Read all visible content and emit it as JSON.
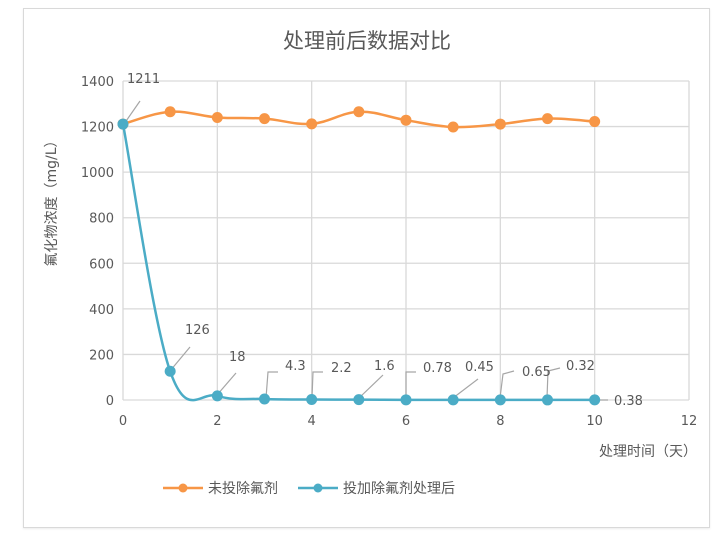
{
  "chart_data": {
    "type": "line",
    "title": "处理前后数据对比",
    "xlabel": "处理时间（天）",
    "ylabel": "氟化物浓度（mg/L）",
    "xlim": [
      0,
      12
    ],
    "ylim": [
      0,
      1400
    ],
    "x_ticks": [
      "0",
      "2",
      "4",
      "6",
      "8",
      "10",
      "12"
    ],
    "y_ticks": [
      "0",
      "200",
      "400",
      "600",
      "800",
      "1000",
      "1200",
      "1400"
    ],
    "grid": true,
    "legend_position": "bottom",
    "x": [
      0,
      1,
      2,
      3,
      4,
      5,
      6,
      7,
      8,
      9,
      10
    ],
    "series": [
      {
        "name": "未投除氟剂",
        "color": "#F79646",
        "values": [
          1211,
          1265,
          1240,
          1235,
          1212,
          1265,
          1228,
          1198,
          1211,
          1235,
          1222
        ]
      },
      {
        "name": "投加除氟剂处理后",
        "color": "#4BACC6",
        "values": [
          1211,
          126,
          18,
          4.3,
          2.2,
          1.6,
          0.78,
          0.45,
          0.65,
          0.32,
          0.38
        ],
        "data_labels": [
          "1211",
          "126",
          "18",
          "4.3",
          "2.2",
          "1.6",
          "0.78",
          "0.45",
          "0.65",
          "0.32",
          "0.38"
        ]
      }
    ]
  },
  "colors": {
    "orange": "#F79646",
    "blue": "#4BACC6",
    "grid": "#d9d9d9",
    "text": "#595959"
  }
}
